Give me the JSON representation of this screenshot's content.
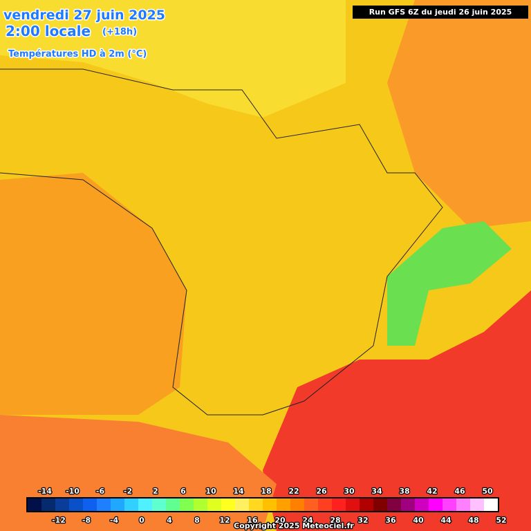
{
  "header": {
    "date": "vendredi 27 juin 2025",
    "time": "2:00 locale",
    "lead": "(+18h)",
    "field": "Températures HD à 2m (°C)",
    "run": "Run GFS 6Z du jeudi 26 juin 2025"
  },
  "colorbar": {
    "ticks": [
      -14,
      -12,
      -10,
      -8,
      -6,
      -4,
      -2,
      0,
      2,
      4,
      6,
      8,
      10,
      12,
      14,
      16,
      18,
      20,
      22,
      24,
      26,
      28,
      30,
      32,
      34,
      36,
      38,
      40,
      42,
      44,
      46,
      48,
      50,
      52
    ],
    "colors": [
      "#02104a",
      "#052a6e",
      "#0a3c9a",
      "#0a50c8",
      "#1060f0",
      "#1e80ff",
      "#20a8ff",
      "#30d0ff",
      "#50f0ff",
      "#60ffd0",
      "#60ff90",
      "#80ff50",
      "#b0ff30",
      "#e0ff20",
      "#ffff20",
      "#fff060",
      "#ffd820",
      "#ffc000",
      "#ffa000",
      "#ff8000",
      "#ff6020",
      "#ff4020",
      "#ff2020",
      "#e01010",
      "#b00000",
      "#800000",
      "#800040",
      "#a00080",
      "#d000c0",
      "#ff00ff",
      "#ff40ff",
      "#ff80ff",
      "#ffc0ff",
      "#ffffff"
    ]
  },
  "footer": {
    "copyright": "Copyright 2025 Meteociel.fr"
  }
}
